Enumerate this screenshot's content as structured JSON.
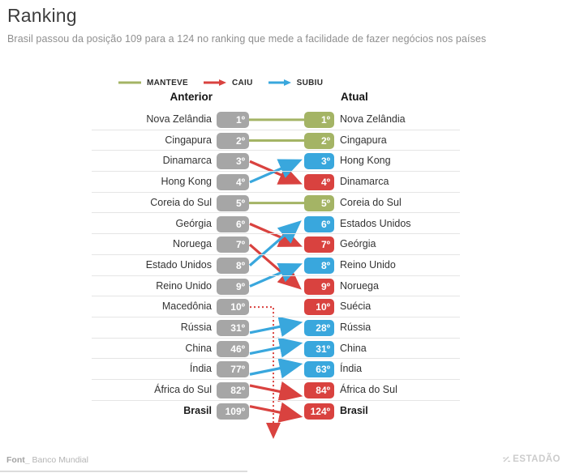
{
  "title": "Ranking",
  "subtitle": "Brasil passou da posição 109 para a 124 no ranking que mede a facilidade de fazer negócios nos países",
  "legend": [
    {
      "label": "MANTEVE",
      "status": "kept",
      "arrow": false
    },
    {
      "label": "CAIU",
      "status": "fell",
      "arrow": true
    },
    {
      "label": "SUBIU",
      "status": "rose",
      "arrow": true
    }
  ],
  "columns": {
    "left": "Anterior",
    "right": "Atual"
  },
  "colors": {
    "kept": "#a4b465",
    "fell": "#d9423f",
    "rose": "#39a7dd",
    "previous": "#a6a6a6",
    "separator": "#e5e5e5"
  },
  "rows": [
    {
      "left": {
        "label": "Nova Zelândia",
        "rank": "1º"
      },
      "right": {
        "label": "Nova Zelândia",
        "rank": "1º",
        "status": "kept"
      },
      "link": {
        "to": 0,
        "status": "kept"
      },
      "bold": false
    },
    {
      "left": {
        "label": "Cingapura",
        "rank": "2º"
      },
      "right": {
        "label": "Cingapura",
        "rank": "2º",
        "status": "kept"
      },
      "link": {
        "to": 1,
        "status": "kept"
      },
      "bold": false
    },
    {
      "left": {
        "label": "Dinamarca",
        "rank": "3º"
      },
      "right": {
        "label": "Hong Kong",
        "rank": "3º",
        "status": "rose"
      },
      "link": {
        "to": 3,
        "status": "fell"
      },
      "bold": false
    },
    {
      "left": {
        "label": "Hong Kong",
        "rank": "4º"
      },
      "right": {
        "label": "Dinamarca",
        "rank": "4º",
        "status": "fell"
      },
      "link": {
        "to": 2,
        "status": "rose"
      },
      "bold": false
    },
    {
      "left": {
        "label": "Coreia do Sul",
        "rank": "5º"
      },
      "right": {
        "label": "Coreia do Sul",
        "rank": "5º",
        "status": "kept"
      },
      "link": {
        "to": 4,
        "status": "kept"
      },
      "bold": false
    },
    {
      "left": {
        "label": "Geórgia",
        "rank": "6º"
      },
      "right": {
        "label": "Estados Unidos",
        "rank": "6º",
        "status": "rose"
      },
      "link": {
        "to": 6,
        "status": "fell"
      },
      "bold": false
    },
    {
      "left": {
        "label": "Noruega",
        "rank": "7º"
      },
      "right": {
        "label": "Geórgia",
        "rank": "7º",
        "status": "fell"
      },
      "link": {
        "to": 8,
        "status": "fell"
      },
      "bold": false
    },
    {
      "left": {
        "label": "Estado Unidos",
        "rank": "8º"
      },
      "right": {
        "label": "Reino Unido",
        "rank": "8º",
        "status": "rose"
      },
      "link": {
        "to": 5,
        "status": "rose"
      },
      "bold": false
    },
    {
      "left": {
        "label": "Reino Unido",
        "rank": "9º"
      },
      "right": {
        "label": "Noruega",
        "rank": "9º",
        "status": "fell"
      },
      "link": {
        "to": 7,
        "status": "rose"
      },
      "bold": false
    },
    {
      "left": {
        "label": "Macedônia",
        "rank": "10º"
      },
      "right": {
        "label": "Suécia",
        "rank": "10º",
        "status": "fell"
      },
      "link": {
        "type": "drop",
        "status": "fell"
      },
      "bold": false
    },
    {
      "left": {
        "label": "Rússia",
        "rank": "31º"
      },
      "right": {
        "label": "Rússia",
        "rank": "28º",
        "status": "rose"
      },
      "link": {
        "to": 10,
        "status": "rose"
      },
      "bold": false
    },
    {
      "left": {
        "label": "China",
        "rank": "46º"
      },
      "right": {
        "label": "China",
        "rank": "31º",
        "status": "rose"
      },
      "link": {
        "to": 11,
        "status": "rose"
      },
      "bold": false
    },
    {
      "left": {
        "label": "Índia",
        "rank": "77º"
      },
      "right": {
        "label": "Índia",
        "rank": "63º",
        "status": "rose"
      },
      "link": {
        "to": 12,
        "status": "rose"
      },
      "bold": false
    },
    {
      "left": {
        "label": "África do Sul",
        "rank": "82º"
      },
      "right": {
        "label": "África do Sul",
        "rank": "84º",
        "status": "fell"
      },
      "link": {
        "to": 13,
        "status": "fell"
      },
      "bold": false
    },
    {
      "left": {
        "label": "Brasil",
        "rank": "109º"
      },
      "right": {
        "label": "Brasil",
        "rank": "124º",
        "status": "fell"
      },
      "link": {
        "to": 14,
        "status": "fell"
      },
      "bold": true
    }
  ],
  "footer": {
    "source_label": "Font_",
    "source": "Banco Mundial",
    "brand": "ESTADÃO"
  },
  "chart_data": {
    "type": "line",
    "subtype": "slopegraph-ranking",
    "title": "Ranking",
    "columns": [
      "Anterior",
      "Atual"
    ],
    "legend_entries": [
      "MANTEVE",
      "CAIU",
      "SUBIU"
    ],
    "series": [
      {
        "name": "Nova Zelândia",
        "values": [
          1,
          1
        ],
        "status": "manteve"
      },
      {
        "name": "Cingapura",
        "values": [
          2,
          2
        ],
        "status": "manteve"
      },
      {
        "name": "Dinamarca",
        "values": [
          3,
          4
        ],
        "status": "caiu"
      },
      {
        "name": "Hong Kong",
        "values": [
          4,
          3
        ],
        "status": "subiu"
      },
      {
        "name": "Coreia do Sul",
        "values": [
          5,
          5
        ],
        "status": "manteve"
      },
      {
        "name": "Geórgia",
        "values": [
          6,
          7
        ],
        "status": "caiu"
      },
      {
        "name": "Noruega",
        "values": [
          7,
          9
        ],
        "status": "caiu"
      },
      {
        "name": "Estados Unidos",
        "values": [
          8,
          6
        ],
        "status": "subiu"
      },
      {
        "name": "Reino Unido",
        "values": [
          9,
          8
        ],
        "status": "subiu"
      },
      {
        "name": "Macedônia",
        "values": [
          10,
          null
        ],
        "status": "caiu"
      },
      {
        "name": "Suécia",
        "values": [
          null,
          10
        ],
        "status": "caiu"
      },
      {
        "name": "Rússia",
        "values": [
          31,
          28
        ],
        "status": "subiu"
      },
      {
        "name": "China",
        "values": [
          46,
          31
        ],
        "status": "subiu"
      },
      {
        "name": "Índia",
        "values": [
          77,
          63
        ],
        "status": "subiu"
      },
      {
        "name": "África do Sul",
        "values": [
          82,
          84
        ],
        "status": "caiu"
      },
      {
        "name": "Brasil",
        "values": [
          109,
          124
        ],
        "status": "caiu"
      }
    ]
  }
}
